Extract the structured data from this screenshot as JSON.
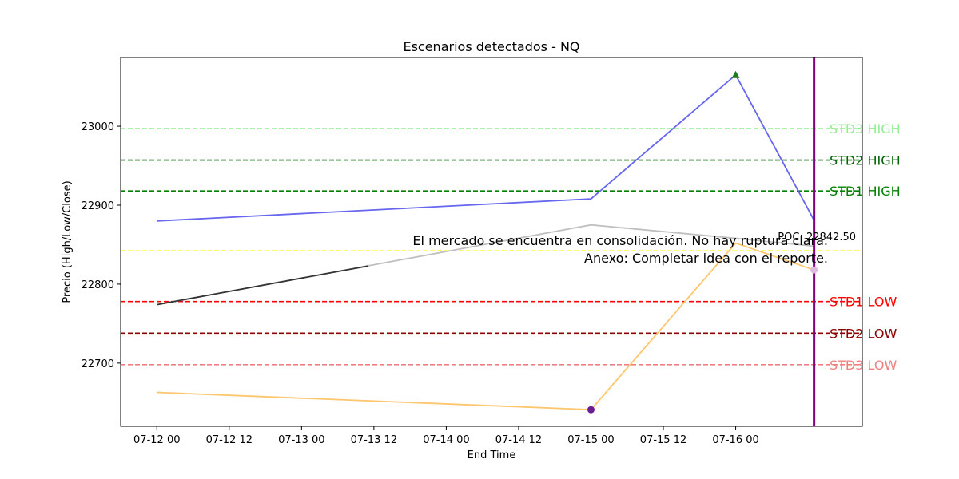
{
  "chart_data": {
    "type": "line",
    "title": "Escenarios detectados - NQ",
    "xlabel": "End Time",
    "ylabel": "Precio (High/Low/Close)",
    "xlim": [
      "2025-07-11T18:00",
      "2025-07-16T21:00"
    ],
    "ylim": [
      22620,
      23087
    ],
    "x_ticks": [
      {
        "t": "2025-07-12T00:00",
        "label": "07-12 00"
      },
      {
        "t": "2025-07-12T12:00",
        "label": "07-12 12"
      },
      {
        "t": "2025-07-13T00:00",
        "label": "07-13 00"
      },
      {
        "t": "2025-07-13T12:00",
        "label": "07-13 12"
      },
      {
        "t": "2025-07-14T00:00",
        "label": "07-14 00"
      },
      {
        "t": "2025-07-14T12:00",
        "label": "07-14 12"
      },
      {
        "t": "2025-07-15T00:00",
        "label": "07-15 00"
      },
      {
        "t": "2025-07-15T12:00",
        "label": "07-15 12"
      },
      {
        "t": "2025-07-16T00:00",
        "label": "07-16 00"
      }
    ],
    "y_ticks": [
      22700,
      22800,
      22900,
      23000
    ],
    "series": [
      {
        "key": "high",
        "color": "#6666ee",
        "points": [
          [
            "2025-07-12T00:00",
            22880
          ],
          [
            "2025-07-15T00:00",
            22908
          ],
          [
            "2025-07-16T00:00",
            23065
          ],
          [
            "2025-07-16T13:00",
            22881
          ]
        ]
      },
      {
        "key": "low",
        "color": "#ffc66e",
        "points": [
          [
            "2025-07-12T00:00",
            22663
          ],
          [
            "2025-07-15T00:00",
            22641
          ],
          [
            "2025-07-16T00:00",
            22852
          ],
          [
            "2025-07-16T13:00",
            22818
          ]
        ]
      },
      {
        "key": "close-recent",
        "color": "#c0c0c0",
        "points": [
          [
            "2025-07-12T00:00",
            22774
          ],
          [
            "2025-07-15T00:00",
            22875
          ],
          [
            "2025-07-16T00:00",
            22858
          ],
          [
            "2025-07-16T13:00",
            22848
          ]
        ]
      },
      {
        "key": "close-early",
        "color": "#333333",
        "points": [
          [
            "2025-07-12T00:00",
            22774
          ],
          [
            "2025-07-13T11:00",
            22823
          ]
        ]
      }
    ],
    "markers": [
      {
        "t": "2025-07-16T00:00",
        "y": 23065,
        "shape": "triangle",
        "color": "#1e7a1e"
      },
      {
        "t": "2025-07-15T00:00",
        "y": 22641,
        "shape": "circle",
        "color": "#6b1f8f"
      },
      {
        "t": "2025-07-16T13:00",
        "y": 22818,
        "shape": "circle",
        "color": "#e0b8e0"
      }
    ],
    "levels": [
      {
        "label": "STD3 HIGH",
        "value": 22997,
        "color": "#90ee90"
      },
      {
        "label": "STD2 HIGH",
        "value": 22957,
        "color": "#006400"
      },
      {
        "label": "STD1 HIGH",
        "value": 22918,
        "color": "#008000"
      },
      {
        "label": "STD1 LOW",
        "value": 22778,
        "color": "#ff0000"
      },
      {
        "label": "STD2 LOW",
        "value": 22738,
        "color": "#8b0000"
      },
      {
        "label": "STD3 LOW",
        "value": 22698,
        "color": "#f08080"
      }
    ],
    "poc": {
      "value": 22842.5,
      "label": "POC: 22842.50",
      "color": "#ffff66"
    },
    "vline": {
      "t": "2025-07-16T13:00",
      "color": "#800080"
    },
    "annotation": {
      "line1": "El mercado se encuentra en consolidación. No hay ruptura clara.",
      "line2": "Anexo: Completar idea con el reporte."
    }
  }
}
